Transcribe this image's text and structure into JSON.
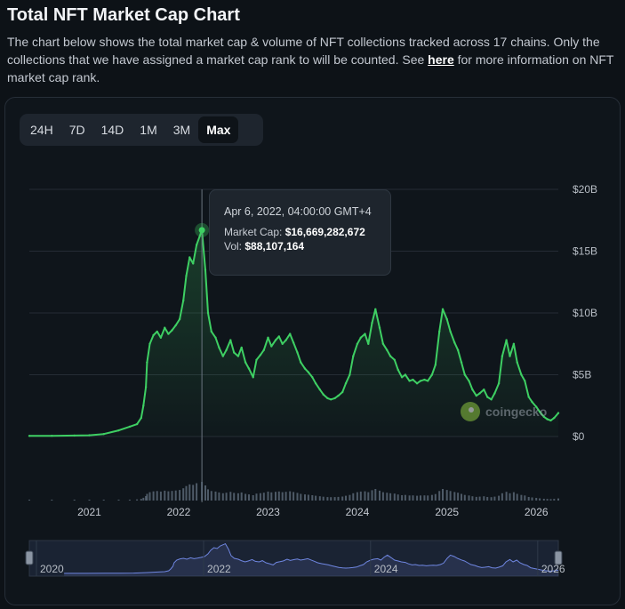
{
  "header": {
    "title": "Total NFT Market Cap Chart",
    "desc_1": "The chart below shows the total market cap & volume of NFT collections tracked across 17 chains. Only the collections that we have assigned a market cap rank to will be counted. See ",
    "desc_link": "here",
    "desc_2": " for more information on NFT market cap rank."
  },
  "tabs": [
    {
      "label": "24H",
      "active": false
    },
    {
      "label": "7D",
      "active": false
    },
    {
      "label": "14D",
      "active": false
    },
    {
      "label": "1M",
      "active": false
    },
    {
      "label": "3M",
      "active": false
    },
    {
      "label": "Max",
      "active": true
    }
  ],
  "tooltip": {
    "date": "Apr 6, 2022, 04:00:00 GMT+4",
    "mcap_label": "Market Cap:",
    "mcap_value": "$16,669,282,672",
    "vol_label": "Vol:",
    "vol_value": "$88,107,164"
  },
  "watermark": "coingecko",
  "colors": {
    "line": "#3ecf63",
    "volume": "#5e6b7a",
    "navigator_line": "#6f86e0",
    "background": "#0d1217"
  },
  "chart_data": {
    "type": "line",
    "title": "Total NFT Market Cap Chart",
    "y_unit": "USD",
    "ylim": [
      0,
      20000000000
    ],
    "y_ticks": [
      {
        "label": "$20B",
        "value": 20000000000
      },
      {
        "label": "$15B",
        "value": 15000000000
      },
      {
        "label": "$10B",
        "value": 10000000000
      },
      {
        "label": "$5B",
        "value": 5000000000
      },
      {
        "label": "$0",
        "value": 0
      }
    ],
    "x_ticks": [
      "2021",
      "2022",
      "2023",
      "2024",
      "2025",
      "2026"
    ],
    "navigator_ticks": [
      "2020",
      "2022",
      "2024",
      "2026"
    ],
    "grid": true,
    "series": [
      {
        "name": "Market Cap",
        "x": [
          "2020-05-01",
          "2020-08-01",
          "2020-11-01",
          "2021-01-01",
          "2021-03-01",
          "2021-05-01",
          "2021-06-15",
          "2021-07-15",
          "2021-08-01",
          "2021-08-10",
          "2021-08-20",
          "2021-08-25",
          "2021-09-05",
          "2021-09-20",
          "2021-10-05",
          "2021-10-20",
          "2021-11-05",
          "2021-11-20",
          "2021-12-05",
          "2021-12-20",
          "2022-01-05",
          "2022-01-20",
          "2022-02-01",
          "2022-02-15",
          "2022-03-01",
          "2022-03-15",
          "2022-04-06",
          "2022-04-20",
          "2022-05-01",
          "2022-05-15",
          "2022-06-01",
          "2022-06-15",
          "2022-07-01",
          "2022-07-15",
          "2022-08-01",
          "2022-08-15",
          "2022-09-01",
          "2022-09-15",
          "2022-10-01",
          "2022-10-15",
          "2022-11-01",
          "2022-11-15",
          "2022-12-01",
          "2022-12-15",
          "2023-01-01",
          "2023-01-15",
          "2023-02-01",
          "2023-02-15",
          "2023-03-01",
          "2023-03-15",
          "2023-04-01",
          "2023-04-15",
          "2023-05-01",
          "2023-05-15",
          "2023-06-01",
          "2023-06-15",
          "2023-07-01",
          "2023-07-15",
          "2023-08-01",
          "2023-08-15",
          "2023-09-01",
          "2023-09-15",
          "2023-10-01",
          "2023-10-15",
          "2023-11-01",
          "2023-11-15",
          "2023-12-01",
          "2023-12-15",
          "2024-01-01",
          "2024-01-15",
          "2024-02-01",
          "2024-02-15",
          "2024-03-01",
          "2024-03-15",
          "2024-04-01",
          "2024-04-15",
          "2024-05-01",
          "2024-05-15",
          "2024-06-01",
          "2024-06-15",
          "2024-07-01",
          "2024-07-15",
          "2024-08-01",
          "2024-08-15",
          "2024-09-01",
          "2024-09-15",
          "2024-10-01",
          "2024-10-15",
          "2024-11-01",
          "2024-11-15",
          "2024-12-01",
          "2024-12-15",
          "2025-01-01",
          "2025-01-15",
          "2025-02-01",
          "2025-02-15",
          "2025-03-01",
          "2025-03-15",
          "2025-04-01",
          "2025-04-15",
          "2025-05-01",
          "2025-05-15",
          "2025-06-01",
          "2025-06-15",
          "2025-07-01",
          "2025-07-15",
          "2025-08-01",
          "2025-08-15",
          "2025-09-01",
          "2025-09-15",
          "2025-10-01",
          "2025-10-15",
          "2025-11-01",
          "2025-11-15",
          "2025-12-01",
          "2025-12-15",
          "2026-01-01",
          "2026-01-15",
          "2026-02-01",
          "2026-02-15",
          "2026-03-01",
          "2026-03-15",
          "2026-04-01"
        ],
        "values": [
          0.05,
          0.06,
          0.08,
          0.1,
          0.2,
          0.5,
          0.8,
          1.0,
          1.5,
          2.5,
          4.0,
          6.0,
          7.5,
          8.2,
          8.5,
          8.0,
          8.8,
          8.3,
          8.6,
          9.0,
          9.5,
          11.0,
          13.0,
          14.5,
          14.0,
          15.5,
          16.7,
          13.5,
          10.0,
          8.5,
          8.0,
          7.2,
          6.5,
          7.0,
          7.8,
          6.8,
          6.5,
          7.2,
          6.0,
          5.5,
          4.8,
          6.2,
          6.6,
          7.0,
          8.0,
          7.3,
          7.8,
          8.1,
          7.5,
          7.8,
          8.3,
          7.6,
          6.8,
          6.0,
          5.5,
          5.2,
          4.8,
          4.3,
          3.8,
          3.4,
          3.1,
          3.0,
          3.1,
          3.3,
          3.6,
          4.3,
          5.0,
          6.5,
          7.5,
          8.0,
          8.3,
          7.5,
          9.2,
          10.3,
          8.8,
          7.5,
          7.0,
          6.5,
          6.2,
          5.4,
          4.8,
          5.0,
          4.5,
          4.6,
          4.3,
          4.5,
          4.6,
          4.5,
          5.0,
          5.8,
          8.5,
          10.3,
          9.5,
          8.5,
          7.6,
          7.0,
          6.0,
          5.0,
          4.5,
          3.8,
          3.3,
          3.5,
          3.8,
          3.2,
          3.0,
          3.5,
          4.3,
          6.5,
          7.8,
          6.5,
          7.5,
          6.0,
          5.0,
          4.5,
          3.2,
          2.8,
          2.4,
          2.0,
          1.6,
          1.4,
          1.3,
          1.5,
          1.9
        ],
        "unit": "billion USD"
      }
    ]
  }
}
